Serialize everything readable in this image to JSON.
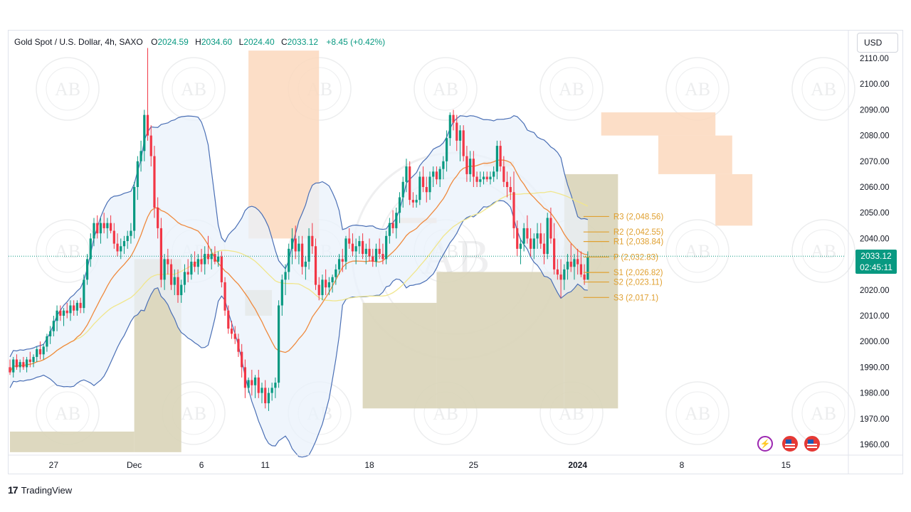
{
  "header": {
    "symbol": "Gold Spot / U.S. Dollar, 4h, SAXO",
    "open_label": "O",
    "open": "2024.59",
    "high_label": "H",
    "high": "2034.60",
    "low_label": "L",
    "low": "2024.40",
    "close_label": "C",
    "close": "2033.12",
    "change": "+8.45 (+0.42%)"
  },
  "currency_button": "USD",
  "current_price": {
    "price": "2033.12",
    "countdown": "02:45:11",
    "value": 2033.12
  },
  "footer": {
    "logo": "17",
    "brand": "TradingView"
  },
  "watermark": {
    "text": "AB",
    "arc_text": "ARABIAN BUSINESS ACADEMY",
    "center_text": "ARABIAN BUSINESS ACADEMY"
  },
  "colors": {
    "bull": "#089981",
    "bear": "#f23645",
    "bollinger": "#4a6fb5",
    "bollinger_fill": "#e9f2fb",
    "ma_fast": "#ef8a3e",
    "ma_slow": "#f0e68c",
    "supply_zone": "#fbd8bd",
    "demand_zone": "#d9d4b8",
    "pivot": "#e0a030",
    "current_price_line": "#089981"
  },
  "chart_data": {
    "type": "candlestick",
    "title": "Gold Spot / U.S. Dollar, 4h, SAXO",
    "ylim": [
      1955,
      2115
    ],
    "y_ticks": [
      "2110.00",
      "2100.00",
      "2090.00",
      "2080.00",
      "2070.00",
      "2060.00",
      "2050.00",
      "2040.00",
      "2030.00",
      "2020.00",
      "2010.00",
      "2000.00",
      "1990.00",
      "1980.00",
      "1970.00",
      "1960.00"
    ],
    "y_tick_values": [
      2110,
      2100,
      2090,
      2080,
      2070,
      2060,
      2050,
      2040,
      2030,
      2020,
      2010,
      2000,
      1990,
      1980,
      1970,
      1960
    ],
    "x_ticks": [
      {
        "label": "27",
        "t": 13
      },
      {
        "label": "Dec",
        "t": 37
      },
      {
        "label": "6",
        "t": 57
      },
      {
        "label": "11",
        "t": 76
      },
      {
        "label": "18",
        "t": 107
      },
      {
        "label": "25",
        "t": 138
      },
      {
        "label": "2024",
        "t": 169,
        "bold": true
      },
      {
        "label": "8",
        "t": 200
      },
      {
        "label": "15",
        "t": 231
      }
    ],
    "candles_t_start": 0,
    "candles_ohlc": [
      [
        1990,
        1993,
        1987,
        1988
      ],
      [
        1988,
        1994,
        1986,
        1993
      ],
      [
        1993,
        1995,
        1989,
        1990
      ],
      [
        1990,
        1993,
        1988,
        1992
      ],
      [
        1992,
        1994,
        1989,
        1990
      ],
      [
        1990,
        1994,
        1988,
        1993
      ],
      [
        1993,
        1996,
        1990,
        1992
      ],
      [
        1992,
        1995,
        1990,
        1994
      ],
      [
        1994,
        1998,
        1992,
        1997
      ],
      [
        1997,
        2000,
        1993,
        1995
      ],
      [
        1995,
        1999,
        1993,
        1998
      ],
      [
        1998,
        2003,
        1996,
        2002
      ],
      [
        2002,
        2006,
        1999,
        2004
      ],
      [
        2004,
        2010,
        2002,
        2008
      ],
      [
        2008,
        2014,
        2004,
        2012
      ],
      [
        2012,
        2014,
        2008,
        2010
      ],
      [
        2010,
        2013,
        2006,
        2012
      ],
      [
        2012,
        2015,
        2009,
        2011
      ],
      [
        2011,
        2016,
        2008,
        2014
      ],
      [
        2014,
        2016,
        2010,
        2012
      ],
      [
        2012,
        2016,
        2010,
        2015
      ],
      [
        2015,
        2017,
        2011,
        2013
      ],
      [
        2013,
        2026,
        2011,
        2024
      ],
      [
        2024,
        2034,
        2022,
        2032
      ],
      [
        2032,
        2042,
        2029,
        2040
      ],
      [
        2040,
        2048,
        2037,
        2046
      ],
      [
        2046,
        2049,
        2040,
        2042
      ],
      [
        2042,
        2048,
        2038,
        2046
      ],
      [
        2046,
        2050,
        2042,
        2044
      ],
      [
        2044,
        2048,
        2040,
        2046
      ],
      [
        2046,
        2049,
        2042,
        2043
      ],
      [
        2043,
        2046,
        2036,
        2038
      ],
      [
        2038,
        2042,
        2033,
        2035
      ],
      [
        2035,
        2040,
        2032,
        2037
      ],
      [
        2037,
        2041,
        2034,
        2039
      ],
      [
        2039,
        2043,
        2036,
        2041
      ],
      [
        2041,
        2046,
        2038,
        2043
      ],
      [
        2043,
        2062,
        2040,
        2060
      ],
      [
        2060,
        2072,
        2055,
        2070
      ],
      [
        2070,
        2078,
        2066,
        2074
      ],
      [
        2074,
        2090,
        2070,
        2088
      ],
      [
        2088,
        2114,
        2078,
        2080
      ],
      [
        2080,
        2084,
        2068,
        2072
      ],
      [
        2072,
        2076,
        2048,
        2052
      ],
      [
        2052,
        2056,
        2040,
        2044
      ],
      [
        2044,
        2048,
        2021,
        2024
      ],
      [
        2024,
        2034,
        2020,
        2032
      ],
      [
        2032,
        2036,
        2026,
        2030
      ],
      [
        2030,
        2032,
        2020,
        2022
      ],
      [
        2022,
        2028,
        2018,
        2025
      ],
      [
        2025,
        2028,
        2015,
        2018
      ],
      [
        2018,
        2024,
        2015,
        2022
      ],
      [
        2022,
        2030,
        2019,
        2027
      ],
      [
        2027,
        2032,
        2023,
        2026
      ],
      [
        2026,
        2034,
        2024,
        2031
      ],
      [
        2031,
        2035,
        2027,
        2029
      ],
      [
        2029,
        2034,
        2026,
        2032
      ],
      [
        2032,
        2036,
        2027,
        2030
      ],
      [
        2030,
        2037,
        2026,
        2034
      ],
      [
        2034,
        2041,
        2030,
        2032
      ],
      [
        2032,
        2036,
        2028,
        2034
      ],
      [
        2034,
        2037,
        2030,
        2031
      ],
      [
        2031,
        2035,
        2029,
        2033
      ],
      [
        2033,
        2035,
        2021,
        2023
      ],
      [
        2023,
        2025,
        2010,
        2012
      ],
      [
        2012,
        2014,
        2003,
        2005
      ],
      [
        2005,
        2008,
        2001,
        2003
      ],
      [
        2003,
        2006,
        1999,
        2001
      ],
      [
        2001,
        2003,
        1994,
        1996
      ],
      [
        1996,
        1999,
        1986,
        1990
      ],
      [
        1990,
        1993,
        1978,
        1982
      ],
      [
        1982,
        1986,
        1980,
        1985
      ],
      [
        1985,
        1989,
        1979,
        1983
      ],
      [
        1983,
        1987,
        1978,
        1986
      ],
      [
        1986,
        1989,
        1978,
        1980
      ],
      [
        1980,
        1984,
        1976,
        1982
      ],
      [
        1982,
        1985,
        1974,
        1976
      ],
      [
        1976,
        1982,
        1973,
        1980
      ],
      [
        1980,
        1984,
        1977,
        1982
      ],
      [
        1982,
        1986,
        1978,
        1984
      ],
      [
        1984,
        2016,
        1982,
        2014
      ],
      [
        2014,
        2026,
        2010,
        2024
      ],
      [
        2024,
        2030,
        2018,
        2027
      ],
      [
        2027,
        2038,
        2024,
        2036
      ],
      [
        2036,
        2044,
        2030,
        2040
      ],
      [
        2040,
        2045,
        2032,
        2035
      ],
      [
        2035,
        2041,
        2030,
        2038
      ],
      [
        2038,
        2041,
        2026,
        2029
      ],
      [
        2029,
        2033,
        2024,
        2031
      ],
      [
        2031,
        2044,
        2028,
        2041
      ],
      [
        2041,
        2046,
        2034,
        2037
      ],
      [
        2037,
        2040,
        2020,
        2022
      ],
      [
        2022,
        2025,
        2016,
        2018
      ],
      [
        2018,
        2026,
        2016,
        2024
      ],
      [
        2024,
        2028,
        2018,
        2021
      ],
      [
        2021,
        2025,
        2018,
        2023
      ],
      [
        2023,
        2026,
        2019,
        2025
      ],
      [
        2025,
        2030,
        2022,
        2028
      ],
      [
        2028,
        2034,
        2026,
        2032
      ],
      [
        2032,
        2036,
        2027,
        2031
      ],
      [
        2031,
        2041,
        2028,
        2040
      ],
      [
        2040,
        2044,
        2036,
        2038
      ],
      [
        2038,
        2042,
        2033,
        2035
      ],
      [
        2035,
        2040,
        2030,
        2037
      ],
      [
        2037,
        2041,
        2034,
        2039
      ],
      [
        2039,
        2042,
        2032,
        2034
      ],
      [
        2034,
        2038,
        2030,
        2036
      ],
      [
        2036,
        2040,
        2031,
        2033
      ],
      [
        2033,
        2036,
        2029,
        2031
      ],
      [
        2031,
        2038,
        2029,
        2036
      ],
      [
        2036,
        2040,
        2032,
        2034
      ],
      [
        2034,
        2038,
        2030,
        2032
      ],
      [
        2032,
        2043,
        2030,
        2041
      ],
      [
        2041,
        2048,
        2038,
        2046
      ],
      [
        2046,
        2051,
        2042,
        2044
      ],
      [
        2044,
        2052,
        2040,
        2050
      ],
      [
        2050,
        2058,
        2046,
        2056
      ],
      [
        2056,
        2064,
        2052,
        2062
      ],
      [
        2062,
        2071,
        2058,
        2068
      ],
      [
        2068,
        2070,
        2053,
        2055
      ],
      [
        2055,
        2058,
        2052,
        2054
      ],
      [
        2054,
        2057,
        2052,
        2055
      ],
      [
        2055,
        2066,
        2053,
        2064
      ],
      [
        2064,
        2068,
        2058,
        2060
      ],
      [
        2060,
        2064,
        2054,
        2058
      ],
      [
        2058,
        2066,
        2055,
        2064
      ],
      [
        2064,
        2068,
        2060,
        2066
      ],
      [
        2066,
        2068,
        2061,
        2063
      ],
      [
        2063,
        2068,
        2060,
        2067
      ],
      [
        2067,
        2072,
        2063,
        2070
      ],
      [
        2070,
        2082,
        2066,
        2079
      ],
      [
        2079,
        2089,
        2076,
        2088
      ],
      [
        2088,
        2090,
        2082,
        2085
      ],
      [
        2085,
        2088,
        2074,
        2078
      ],
      [
        2078,
        2084,
        2070,
        2082
      ],
      [
        2082,
        2084,
        2070,
        2072
      ],
      [
        2072,
        2076,
        2062,
        2065
      ],
      [
        2065,
        2074,
        2062,
        2071
      ],
      [
        2071,
        2074,
        2060,
        2064
      ],
      [
        2064,
        2066,
        2060,
        2062
      ],
      [
        2062,
        2066,
        2060,
        2063
      ],
      [
        2063,
        2066,
        2061,
        2064
      ],
      [
        2064,
        2066,
        2062,
        2063
      ],
      [
        2063,
        2066,
        2061,
        2064
      ],
      [
        2064,
        2068,
        2062,
        2066
      ],
      [
        2066,
        2078,
        2063,
        2076
      ],
      [
        2076,
        2078,
        2066,
        2068
      ],
      [
        2068,
        2072,
        2060,
        2062
      ],
      [
        2062,
        2066,
        2056,
        2060
      ],
      [
        2060,
        2064,
        2055,
        2058
      ],
      [
        2058,
        2066,
        2040,
        2044
      ],
      [
        2044,
        2047,
        2033,
        2036
      ],
      [
        2036,
        2040,
        2030,
        2038
      ],
      [
        2038,
        2046,
        2035,
        2044
      ],
      [
        2044,
        2049,
        2038,
        2040
      ],
      [
        2040,
        2044,
        2033,
        2036
      ],
      [
        2036,
        2042,
        2032,
        2040
      ],
      [
        2040,
        2046,
        2036,
        2042
      ],
      [
        2042,
        2046,
        2036,
        2038
      ],
      [
        2038,
        2042,
        2030,
        2034
      ],
      [
        2034,
        2050,
        2032,
        2048
      ],
      [
        2048,
        2052,
        2038,
        2040
      ],
      [
        2040,
        2046,
        2026,
        2028
      ],
      [
        2028,
        2032,
        2024,
        2026
      ],
      [
        2026,
        2032,
        2017,
        2024
      ],
      [
        2024,
        2030,
        2020,
        2028
      ],
      [
        2028,
        2034,
        2024,
        2031
      ],
      [
        2031,
        2038,
        2027,
        2029
      ],
      [
        2029,
        2034,
        2024,
        2032
      ],
      [
        2032,
        2036,
        2026,
        2030
      ],
      [
        2030,
        2035,
        2025,
        2026
      ],
      [
        2026,
        2030,
        2022,
        2024
      ],
      [
        2024,
        2035,
        2024,
        2033
      ]
    ],
    "zones": [
      {
        "kind": "supply",
        "t0": 71,
        "t1": 92,
        "top": 2113,
        "bottom": 2040
      },
      {
        "kind": "supply",
        "t0": 44,
        "t1": 45,
        "top": 2052,
        "bottom": 2050
      },
      {
        "kind": "supply",
        "t0": 141,
        "t1": 150,
        "top": 2070,
        "bottom": 2068
      },
      {
        "kind": "supply",
        "t0": 176,
        "t1": 210,
        "top": 2089,
        "bottom": 2080
      },
      {
        "kind": "supply",
        "t0": 193,
        "t1": 215,
        "top": 2080,
        "bottom": 2065
      },
      {
        "kind": "supply",
        "t0": 210,
        "t1": 221,
        "top": 2065,
        "bottom": 2045
      },
      {
        "kind": "supply",
        "t0": 116,
        "t1": 127,
        "top": 2048,
        "bottom": 2046
      },
      {
        "kind": "demand",
        "t0": 0,
        "t1": 37,
        "top": 1965,
        "bottom": 1957
      },
      {
        "kind": "demand",
        "t0": 37,
        "t1": 51,
        "top": 2032,
        "bottom": 1957
      },
      {
        "kind": "demand",
        "t0": 70,
        "t1": 78,
        "top": 2020,
        "bottom": 2010
      },
      {
        "kind": "demand",
        "t0": 105,
        "t1": 127,
        "top": 2015,
        "bottom": 1974
      },
      {
        "kind": "demand",
        "t0": 127,
        "t1": 165,
        "top": 2027,
        "bottom": 1974
      },
      {
        "kind": "demand",
        "t0": 165,
        "t1": 181,
        "top": 2065,
        "bottom": 1974
      }
    ],
    "pivot_levels": [
      {
        "label": "R3 (2,048.56)",
        "value": 2048.56
      },
      {
        "label": "R2 (2,042.55)",
        "value": 2042.55
      },
      {
        "label": "R1 (2,038.84)",
        "value": 2038.84
      },
      {
        "label": "P (2,032.83)",
        "value": 2032.83
      },
      {
        "label": "S1 (2,026.82)",
        "value": 2026.82
      },
      {
        "label": "S2 (2,023.11)",
        "value": 2023.11
      },
      {
        "label": "S3 (2,017.1)",
        "value": 2017.1
      }
    ],
    "grid": false,
    "legend": "top-left"
  }
}
